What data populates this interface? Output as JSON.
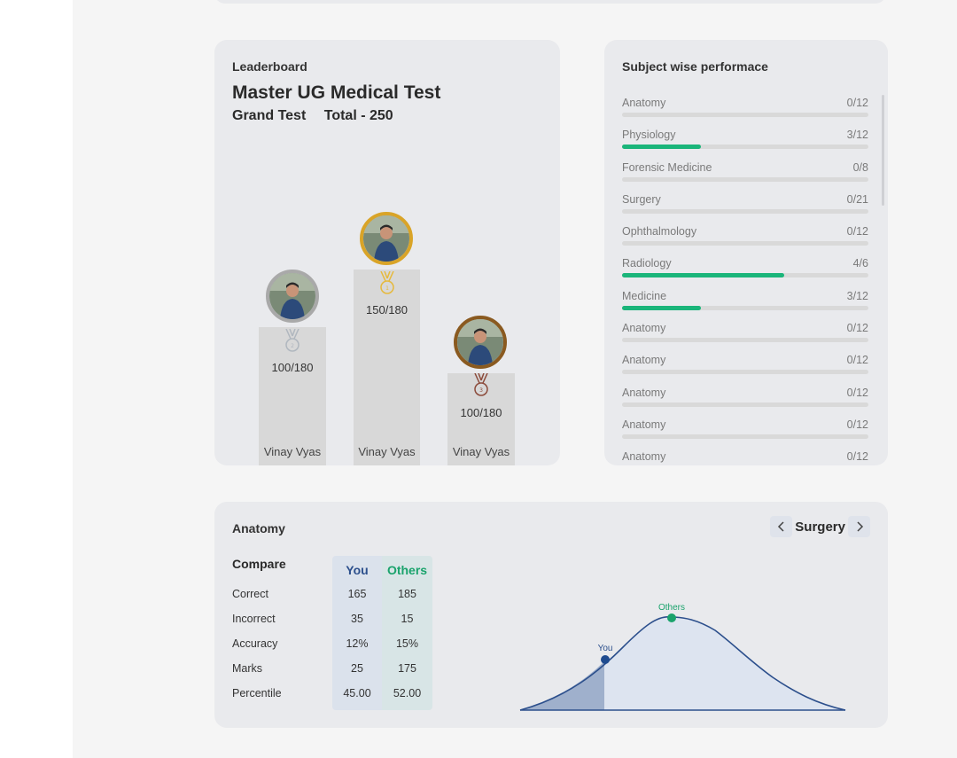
{
  "leaderboard": {
    "title": "Leaderboard",
    "test_name": "Master UG Medical Test",
    "test_type": "Grand Test",
    "total": "Total - 250",
    "podium": [
      {
        "rank": 2,
        "score": "100/180",
        "name": "Vinay Vyas",
        "medal_color": "#b0b7bf"
      },
      {
        "rank": 1,
        "score": "150/180",
        "name": "Vinay Vyas",
        "medal_color": "#e6b93c"
      },
      {
        "rank": 3,
        "score": "100/180",
        "name": "Vinay Vyas",
        "medal_color": "#8b4a3a"
      }
    ]
  },
  "subjects": {
    "title": "Subject wise performace",
    "accent": "#1ab57a",
    "items": [
      {
        "name": "Anatomy",
        "score": "0/12",
        "progress": 0
      },
      {
        "name": "Physiology",
        "score": "3/12",
        "progress": 0.32
      },
      {
        "name": "Forensic Medicine",
        "score": "0/8",
        "progress": 0
      },
      {
        "name": "Surgery",
        "score": "0/21",
        "progress": 0
      },
      {
        "name": "Ophthalmology",
        "score": "0/12",
        "progress": 0
      },
      {
        "name": "Radiology",
        "score": "4/6",
        "progress": 0.66
      },
      {
        "name": "Medicine",
        "score": "3/12",
        "progress": 0.32
      },
      {
        "name": "Anatomy",
        "score": "0/12",
        "progress": 0
      },
      {
        "name": "Anatomy",
        "score": "0/12",
        "progress": 0
      },
      {
        "name": "Anatomy",
        "score": "0/12",
        "progress": 0
      },
      {
        "name": "Anatomy",
        "score": "0/12",
        "progress": 0
      },
      {
        "name": "Anatomy",
        "score": "0/12",
        "progress": 0
      }
    ]
  },
  "compare": {
    "subject": "Anatomy",
    "nav_label": "Surgery",
    "heading": "Compare",
    "you_label": "You",
    "others_label": "Others",
    "rows": [
      {
        "label": "Correct",
        "you": "165",
        "others": "185"
      },
      {
        "label": "Incorrect",
        "you": "35",
        "others": "15"
      },
      {
        "label": "Accuracy",
        "you": "12%",
        "others": "15%"
      },
      {
        "label": "Marks",
        "you": "25",
        "others": "175"
      },
      {
        "label": "Percentile",
        "you": "45.00",
        "others": "52.00"
      }
    ],
    "curve_you_label": "You",
    "curve_others_label": "Others",
    "you_color": "#1f4b8f",
    "others_color": "#1aa36c"
  }
}
